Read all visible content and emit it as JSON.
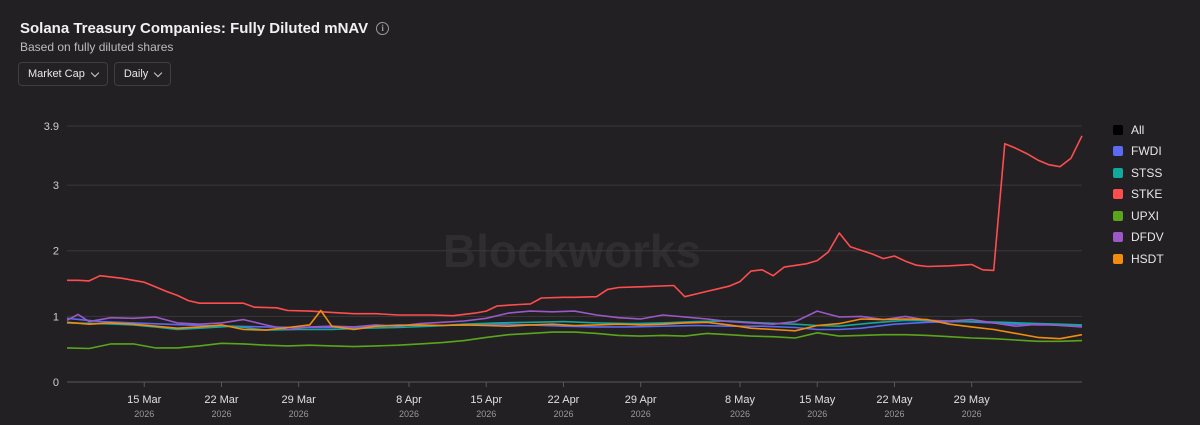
{
  "header": {
    "title": "Solana Treasury Companies: Fully Diluted mNAV",
    "info_icon": "info-icon",
    "subtitle": "Based on fully diluted shares"
  },
  "controls": {
    "metric_label": "Market Cap",
    "interval_label": "Daily"
  },
  "watermark": "Blockworks",
  "legend": [
    {
      "label": "All",
      "color": "#000000"
    },
    {
      "label": "FWDI",
      "color": "#5b6af2"
    },
    {
      "label": "STSS",
      "color": "#12a89b"
    },
    {
      "label": "STKE",
      "color": "#ff4d4f"
    },
    {
      "label": "UPXI",
      "color": "#5aa51c"
    },
    {
      "label": "DFDV",
      "color": "#9b59c8"
    },
    {
      "label": "HSDT",
      "color": "#f28c0f"
    }
  ],
  "chart_data": {
    "type": "line",
    "title": "Solana Treasury Companies: Fully Diluted mNAV",
    "subtitle": "Based on fully diluted shares",
    "ylim": [
      0,
      3.9
    ],
    "y_ticks": [
      0,
      1,
      2,
      3,
      3.9
    ],
    "y_tick_labels": [
      "0",
      "1",
      "2",
      "3",
      "3.9"
    ],
    "grid": true,
    "legend_position": "right",
    "x_ticks": [
      {
        "label": "15 Mar",
        "year": "2026"
      },
      {
        "label": "22 Mar",
        "year": "2026"
      },
      {
        "label": "29 Mar",
        "year": "2026"
      },
      {
        "label": "8 Apr",
        "year": "2026"
      },
      {
        "label": "15 Apr",
        "year": "2026"
      },
      {
        "label": "22 Apr",
        "year": "2026"
      },
      {
        "label": "29 Apr",
        "year": "2026"
      },
      {
        "label": "8 May",
        "year": "2026"
      },
      {
        "label": "15 May",
        "year": "2026"
      },
      {
        "label": "22 May",
        "year": "2026"
      },
      {
        "label": "29 May",
        "year": "2026"
      }
    ],
    "x_tick_positions": [
      7,
      14,
      21,
      31,
      38,
      45,
      52,
      61,
      68,
      75,
      82
    ],
    "x_range": [
      0,
      92
    ],
    "series": [
      {
        "name": "STKE",
        "color": "#ff4d4f",
        "points": [
          [
            0,
            1.55
          ],
          [
            1,
            1.55
          ],
          [
            2,
            1.54
          ],
          [
            3,
            1.62
          ],
          [
            5,
            1.58
          ],
          [
            6,
            1.55
          ],
          [
            7,
            1.52
          ],
          [
            8,
            1.45
          ],
          [
            9,
            1.38
          ],
          [
            10,
            1.32
          ],
          [
            11,
            1.24
          ],
          [
            12,
            1.2
          ],
          [
            14,
            1.2
          ],
          [
            16,
            1.2
          ],
          [
            17,
            1.14
          ],
          [
            19,
            1.13
          ],
          [
            20,
            1.09
          ],
          [
            22,
            1.08
          ],
          [
            24,
            1.06
          ],
          [
            26,
            1.04
          ],
          [
            28,
            1.04
          ],
          [
            30,
            1.02
          ],
          [
            33,
            1.02
          ],
          [
            35,
            1.01
          ],
          [
            37,
            1.05
          ],
          [
            38,
            1.08
          ],
          [
            39,
            1.16
          ],
          [
            41,
            1.18
          ],
          [
            42,
            1.19
          ],
          [
            43,
            1.28
          ],
          [
            45,
            1.29
          ],
          [
            46,
            1.29
          ],
          [
            48,
            1.3
          ],
          [
            49,
            1.41
          ],
          [
            50,
            1.44
          ],
          [
            52,
            1.45
          ],
          [
            55,
            1.47
          ],
          [
            56,
            1.3
          ],
          [
            58,
            1.38
          ],
          [
            59,
            1.42
          ],
          [
            60,
            1.46
          ],
          [
            61,
            1.53
          ],
          [
            62,
            1.69
          ],
          [
            63,
            1.71
          ],
          [
            64,
            1.62
          ],
          [
            65,
            1.75
          ],
          [
            67,
            1.8
          ],
          [
            68,
            1.85
          ],
          [
            69,
            1.98
          ],
          [
            70,
            2.27
          ],
          [
            71,
            2.06
          ],
          [
            73,
            1.95
          ],
          [
            74,
            1.88
          ],
          [
            75,
            1.92
          ],
          [
            76,
            1.84
          ],
          [
            77,
            1.78
          ],
          [
            78,
            1.76
          ],
          [
            80,
            1.77
          ],
          [
            81,
            1.78
          ],
          [
            82,
            1.79
          ],
          [
            83,
            1.71
          ],
          [
            84,
            1.7
          ],
          [
            85,
            3.63
          ],
          [
            86,
            3.56
          ],
          [
            87,
            3.48
          ],
          [
            88,
            3.38
          ],
          [
            89,
            3.31
          ],
          [
            90,
            3.28
          ],
          [
            91,
            3.41
          ],
          [
            92,
            3.75
          ]
        ]
      },
      {
        "name": "FWDI",
        "color": "#5b6af2",
        "points": [
          [
            0,
            0.97
          ],
          [
            3,
            0.92
          ],
          [
            6,
            0.9
          ],
          [
            9,
            0.88
          ],
          [
            12,
            0.86
          ],
          [
            15,
            0.85
          ],
          [
            18,
            0.84
          ],
          [
            21,
            0.83
          ],
          [
            24,
            0.83
          ],
          [
            27,
            0.84
          ],
          [
            30,
            0.87
          ],
          [
            33,
            0.86
          ],
          [
            36,
            0.87
          ],
          [
            39,
            0.88
          ],
          [
            42,
            0.87
          ],
          [
            45,
            0.85
          ],
          [
            48,
            0.84
          ],
          [
            51,
            0.84
          ],
          [
            54,
            0.85
          ],
          [
            57,
            0.86
          ],
          [
            60,
            0.85
          ],
          [
            63,
            0.85
          ],
          [
            66,
            0.83
          ],
          [
            68,
            0.8
          ],
          [
            70,
            0.8
          ],
          [
            72,
            0.82
          ],
          [
            75,
            0.88
          ],
          [
            78,
            0.91
          ],
          [
            81,
            0.92
          ],
          [
            84,
            0.9
          ],
          [
            86,
            0.88
          ],
          [
            88,
            0.87
          ],
          [
            90,
            0.87
          ],
          [
            92,
            0.86
          ]
        ]
      },
      {
        "name": "STSS",
        "color": "#12a89b",
        "points": [
          [
            0,
            0.9
          ],
          [
            3,
            0.89
          ],
          [
            6,
            0.87
          ],
          [
            8,
            0.84
          ],
          [
            10,
            0.8
          ],
          [
            12,
            0.82
          ],
          [
            15,
            0.85
          ],
          [
            18,
            0.79
          ],
          [
            21,
            0.8
          ],
          [
            24,
            0.8
          ],
          [
            27,
            0.82
          ],
          [
            30,
            0.83
          ],
          [
            33,
            0.85
          ],
          [
            36,
            0.88
          ],
          [
            39,
            0.9
          ],
          [
            42,
            0.91
          ],
          [
            45,
            0.92
          ],
          [
            48,
            0.9
          ],
          [
            51,
            0.89
          ],
          [
            54,
            0.9
          ],
          [
            57,
            0.92
          ],
          [
            60,
            0.93
          ],
          [
            63,
            0.9
          ],
          [
            66,
            0.88
          ],
          [
            68,
            0.86
          ],
          [
            70,
            0.85
          ],
          [
            73,
            0.9
          ],
          [
            76,
            0.94
          ],
          [
            79,
            0.93
          ],
          [
            82,
            0.92
          ],
          [
            85,
            0.91
          ],
          [
            88,
            0.89
          ],
          [
            90,
            0.88
          ],
          [
            92,
            0.87
          ]
        ]
      },
      {
        "name": "UPXI",
        "color": "#5aa51c",
        "points": [
          [
            0,
            0.52
          ],
          [
            2,
            0.51
          ],
          [
            4,
            0.58
          ],
          [
            6,
            0.58
          ],
          [
            8,
            0.52
          ],
          [
            10,
            0.52
          ],
          [
            12,
            0.55
          ],
          [
            14,
            0.59
          ],
          [
            16,
            0.58
          ],
          [
            18,
            0.56
          ],
          [
            20,
            0.55
          ],
          [
            22,
            0.56
          ],
          [
            24,
            0.55
          ],
          [
            26,
            0.54
          ],
          [
            28,
            0.55
          ],
          [
            30,
            0.56
          ],
          [
            32,
            0.58
          ],
          [
            34,
            0.6
          ],
          [
            36,
            0.63
          ],
          [
            38,
            0.68
          ],
          [
            40,
            0.72
          ],
          [
            42,
            0.74
          ],
          [
            44,
            0.76
          ],
          [
            46,
            0.76
          ],
          [
            48,
            0.74
          ],
          [
            50,
            0.71
          ],
          [
            52,
            0.7
          ],
          [
            54,
            0.71
          ],
          [
            56,
            0.7
          ],
          [
            58,
            0.74
          ],
          [
            60,
            0.72
          ],
          [
            62,
            0.7
          ],
          [
            64,
            0.69
          ],
          [
            66,
            0.67
          ],
          [
            68,
            0.75
          ],
          [
            70,
            0.7
          ],
          [
            72,
            0.71
          ],
          [
            74,
            0.72
          ],
          [
            76,
            0.72
          ],
          [
            78,
            0.71
          ],
          [
            80,
            0.69
          ],
          [
            82,
            0.67
          ],
          [
            84,
            0.66
          ],
          [
            86,
            0.64
          ],
          [
            88,
            0.62
          ],
          [
            90,
            0.62
          ],
          [
            92,
            0.63
          ]
        ]
      },
      {
        "name": "DFDV",
        "color": "#9b59c8",
        "points": [
          [
            0,
            0.94
          ],
          [
            1,
            1.03
          ],
          [
            2,
            0.92
          ],
          [
            4,
            0.98
          ],
          [
            6,
            0.97
          ],
          [
            8,
            0.99
          ],
          [
            10,
            0.9
          ],
          [
            12,
            0.88
          ],
          [
            14,
            0.9
          ],
          [
            16,
            0.95
          ],
          [
            18,
            0.87
          ],
          [
            20,
            0.8
          ],
          [
            22,
            0.84
          ],
          [
            24,
            0.85
          ],
          [
            26,
            0.84
          ],
          [
            28,
            0.87
          ],
          [
            30,
            0.85
          ],
          [
            32,
            0.89
          ],
          [
            34,
            0.91
          ],
          [
            36,
            0.93
          ],
          [
            38,
            0.97
          ],
          [
            40,
            1.05
          ],
          [
            42,
            1.08
          ],
          [
            44,
            1.07
          ],
          [
            46,
            1.08
          ],
          [
            48,
            1.02
          ],
          [
            50,
            0.98
          ],
          [
            52,
            0.96
          ],
          [
            54,
            1.02
          ],
          [
            56,
            0.99
          ],
          [
            58,
            0.96
          ],
          [
            60,
            0.92
          ],
          [
            62,
            0.9
          ],
          [
            64,
            0.88
          ],
          [
            66,
            0.92
          ],
          [
            68,
            1.08
          ],
          [
            70,
            0.99
          ],
          [
            72,
            1.0
          ],
          [
            74,
            0.95
          ],
          [
            76,
            1.0
          ],
          [
            78,
            0.94
          ],
          [
            80,
            0.93
          ],
          [
            82,
            0.95
          ],
          [
            84,
            0.9
          ],
          [
            86,
            0.85
          ],
          [
            88,
            0.88
          ],
          [
            90,
            0.86
          ],
          [
            92,
            0.84
          ]
        ]
      },
      {
        "name": "HSDT",
        "color": "#f28c0f",
        "points": [
          [
            0,
            0.91
          ],
          [
            2,
            0.88
          ],
          [
            4,
            0.9
          ],
          [
            6,
            0.88
          ],
          [
            8,
            0.85
          ],
          [
            10,
            0.82
          ],
          [
            12,
            0.84
          ],
          [
            14,
            0.87
          ],
          [
            16,
            0.8
          ],
          [
            18,
            0.79
          ],
          [
            20,
            0.83
          ],
          [
            22,
            0.87
          ],
          [
            23,
            1.09
          ],
          [
            24,
            0.85
          ],
          [
            26,
            0.8
          ],
          [
            28,
            0.85
          ],
          [
            30,
            0.86
          ],
          [
            32,
            0.87
          ],
          [
            34,
            0.86
          ],
          [
            36,
            0.87
          ],
          [
            38,
            0.86
          ],
          [
            40,
            0.85
          ],
          [
            42,
            0.87
          ],
          [
            44,
            0.88
          ],
          [
            46,
            0.86
          ],
          [
            48,
            0.87
          ],
          [
            50,
            0.88
          ],
          [
            52,
            0.87
          ],
          [
            54,
            0.88
          ],
          [
            56,
            0.9
          ],
          [
            58,
            0.91
          ],
          [
            60,
            0.87
          ],
          [
            62,
            0.82
          ],
          [
            64,
            0.8
          ],
          [
            66,
            0.78
          ],
          [
            68,
            0.86
          ],
          [
            70,
            0.89
          ],
          [
            72,
            0.96
          ],
          [
            74,
            0.95
          ],
          [
            76,
            0.96
          ],
          [
            78,
            0.95
          ],
          [
            80,
            0.88
          ],
          [
            82,
            0.84
          ],
          [
            84,
            0.8
          ],
          [
            86,
            0.74
          ],
          [
            88,
            0.68
          ],
          [
            90,
            0.66
          ],
          [
            92,
            0.72
          ]
        ]
      }
    ]
  }
}
